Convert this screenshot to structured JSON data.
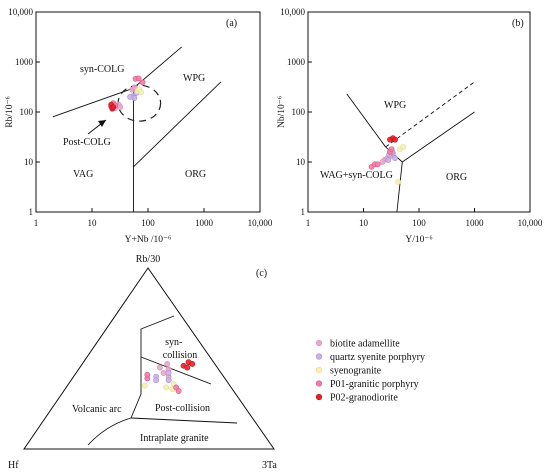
{
  "legend": {
    "items": [
      {
        "label": "biotite adamellite",
        "color": "#e7a9c9",
        "stroke": "#d890b8"
      },
      {
        "label": "quartz syenite porphyry",
        "color": "#c9b3e6",
        "stroke": "#a78fcf"
      },
      {
        "label": "syenogranite",
        "color": "#f3f0b8",
        "stroke": "#e6de8a"
      },
      {
        "label": "P01-granitic porphyry",
        "color": "#f07da5",
        "stroke": "#e05a8a"
      },
      {
        "label": "P02-granodiorite",
        "color": "#e8202a",
        "stroke": "#c41018"
      }
    ]
  },
  "chart_data": [
    {
      "type": "scatter",
      "panel_label": "(a)",
      "xlabel": "Y+Nb /10⁻⁶",
      "ylabel": "Rb/10⁻⁶",
      "xscale": "log",
      "yscale": "log",
      "xlim": [
        1,
        10000
      ],
      "ylim": [
        1,
        10000
      ],
      "x_ticks": [
        "1",
        "10",
        "100",
        "1000",
        "10,000"
      ],
      "y_ticks": [
        "1",
        "10",
        "100",
        "1000",
        "10,000"
      ],
      "field_labels": [
        "syn-COLG",
        "WPG",
        "VAG",
        "ORG",
        "Post-COLG"
      ],
      "boundaries": [
        [
          [
            2,
            80
          ],
          [
            55,
            300
          ]
        ],
        [
          [
            55,
            300
          ],
          [
            400,
            2000
          ]
        ],
        [
          [
            55,
            300
          ],
          [
            55,
            1
          ]
        ],
        [
          [
            55,
            8
          ],
          [
            2000,
            400
          ]
        ]
      ],
      "post_colg_circle": {
        "center": [
          70,
          150
        ],
        "rx_dex": 0.38,
        "ry_dex": 0.36
      },
      "series": [
        {
          "name": "biotite adamellite",
          "points": [
            [
              30,
              140
            ],
            [
              26,
              120
            ],
            [
              32,
              125
            ],
            [
              52,
              280
            ],
            [
              58,
              310
            ]
          ]
        },
        {
          "name": "quartz syenite porphyry",
          "points": [
            [
              55,
              210
            ],
            [
              62,
              240
            ],
            [
              48,
              200
            ],
            [
              57,
              190
            ]
          ]
        },
        {
          "name": "syenogranite",
          "points": [
            [
              65,
              260
            ],
            [
              70,
              285
            ],
            [
              75,
              250
            ]
          ]
        },
        {
          "name": "P01-granitic porphyry",
          "points": [
            [
              22,
              130
            ],
            [
              24,
              150
            ],
            [
              23,
              115
            ],
            [
              26,
              135
            ],
            [
              60,
              460
            ],
            [
              68,
              470
            ],
            [
              80,
              390
            ]
          ]
        },
        {
          "name": "P02-granodiorite",
          "points": [
            [
              22,
              140
            ],
            [
              23,
              120
            ],
            [
              24,
              125
            ]
          ]
        }
      ]
    },
    {
      "type": "scatter",
      "panel_label": "(b)",
      "xlabel": "Y/10⁻⁶",
      "ylabel": "Nb/10⁻⁶",
      "xscale": "log",
      "yscale": "log",
      "xlim": [
        1,
        10000
      ],
      "ylim": [
        1,
        10000
      ],
      "x_ticks": [
        "1",
        "10",
        "100",
        "1000",
        "10,000"
      ],
      "y_ticks": [
        "1",
        "10",
        "100",
        "1000",
        "10,000"
      ],
      "field_labels": [
        "WPG",
        "WAG+syn-COLG",
        "ORG"
      ],
      "boundaries": [
        [
          [
            5,
            230
          ],
          [
            25,
            20
          ]
        ],
        [
          [
            25,
            20
          ],
          [
            50,
            10
          ]
        ],
        [
          [
            40,
            1
          ],
          [
            50,
            10
          ]
        ],
        [
          [
            50,
            10
          ],
          [
            1000,
            100
          ]
        ],
        [
          [
            25,
            20
          ],
          [
            25,
            20
          ]
        ]
      ],
      "dashed_boundary": [
        [
          25,
          20
        ],
        [
          1000,
          400
        ]
      ],
      "series": [
        {
          "name": "biotite adamellite",
          "points": [
            [
              24,
              11
            ],
            [
              27,
              12
            ],
            [
              30,
              13
            ],
            [
              34,
              15
            ],
            [
              22,
              10
            ]
          ]
        },
        {
          "name": "quartz syenite porphyry",
          "points": [
            [
              29,
              14
            ],
            [
              33,
              16
            ],
            [
              37,
              12
            ],
            [
              28,
              11
            ]
          ]
        },
        {
          "name": "syenogranite",
          "points": [
            [
              45,
              18
            ],
            [
              52,
              20
            ],
            [
              42,
              4
            ]
          ]
        },
        {
          "name": "P01-granitic porphyry",
          "points": [
            [
              14,
              8
            ],
            [
              16,
              9
            ],
            [
              18,
              9
            ],
            [
              30,
              16
            ],
            [
              32,
              18
            ]
          ]
        },
        {
          "name": "P02-granodiorite",
          "points": [
            [
              30,
              28
            ],
            [
              34,
              30
            ],
            [
              37,
              28
            ]
          ]
        }
      ]
    },
    {
      "type": "scatter",
      "subtype": "ternary",
      "panel_label": "(c)",
      "apex_labels": {
        "top": "Rb/30",
        "left": "Hf",
        "right": "3Ta"
      },
      "field_labels": [
        "syn-collision",
        "Volcanic arc",
        "Post-collision",
        "Intraplate granite"
      ],
      "series": [
        {
          "name": "biotite adamellite",
          "points": [
            [
              0.32,
              0.45
            ],
            [
              0.34,
              0.47
            ],
            [
              0.36,
              0.44
            ],
            [
              0.38,
              0.4
            ],
            [
              0.35,
              0.42
            ]
          ]
        },
        {
          "name": "quartz syenite porphyry",
          "points": [
            [
              0.33,
              0.4
            ],
            [
              0.37,
              0.42
            ],
            [
              0.34,
              0.38
            ],
            [
              0.39,
              0.38
            ]
          ]
        },
        {
          "name": "syenogranite",
          "points": [
            [
              0.4,
              0.34
            ],
            [
              0.42,
              0.36
            ],
            [
              0.43,
              0.33
            ],
            [
              0.31,
              0.35
            ]
          ]
        },
        {
          "name": "P01-granitic porphyry",
          "points": [
            [
              0.3,
              0.39
            ],
            [
              0.29,
              0.41
            ],
            [
              0.44,
              0.34
            ],
            [
              0.46,
              0.32
            ]
          ]
        },
        {
          "name": "P02-granodiorite",
          "points": [
            [
              0.42,
              0.48
            ],
            [
              0.44,
              0.47
            ],
            [
              0.41,
              0.46
            ],
            [
              0.43,
              0.45
            ]
          ]
        }
      ]
    }
  ]
}
